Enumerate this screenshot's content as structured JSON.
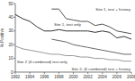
{
  "chart_data": {
    "type": "line",
    "y_label": "% Positive",
    "xlim": [
      1992,
      2008
    ],
    "xticks": [
      1992,
      1994,
      1996,
      1998,
      2000,
      2002,
      2004,
      2006,
      2008
    ],
    "ylim": [
      0,
      50
    ],
    "yticks": [
      0,
      10,
      20,
      30,
      40,
      50
    ],
    "series": [
      {
        "name": "Site 1, test only",
        "color": "#333333",
        "x": [
          1992,
          1993,
          1994,
          1995,
          1996,
          1997,
          1998,
          1999,
          2000,
          2001,
          2002,
          2003,
          2004,
          2005,
          2006,
          2007,
          2008
        ],
        "values": [
          42,
          39,
          37,
          33,
          30,
          30,
          31,
          30,
          30,
          30,
          30,
          29,
          30,
          29,
          25,
          26,
          24
        ]
      },
      {
        "name": "Site 1, test + history",
        "color": "#555555",
        "x": [
          1997,
          1998,
          1999,
          2000,
          2001,
          2002,
          2003,
          2004,
          2005,
          2006,
          2007,
          2008
        ],
        "values": [
          46,
          46,
          39,
          38,
          37,
          37,
          34,
          35,
          33,
          30,
          29,
          28
        ]
      },
      {
        "name": "Site 2 (6 combined) test only",
        "color": "#999999",
        "x": [
          1992,
          1993,
          1994,
          1995,
          1996,
          1997,
          1998,
          1999,
          2000,
          2001,
          2002,
          2003,
          2004,
          2005,
          2006,
          2007,
          2008
        ],
        "values": [
          19,
          17,
          16,
          15,
          14,
          13,
          13,
          12,
          12,
          11,
          11,
          10,
          10,
          9,
          9,
          8,
          8
        ]
      },
      {
        "name": "Site 2, (6 combined) test + history",
        "color": "#666666",
        "x": [
          1997,
          1998,
          1999,
          2000,
          2001,
          2002,
          2003,
          2004,
          2005,
          2006,
          2007,
          2008
        ],
        "values": [
          24,
          23,
          22,
          20,
          19,
          18,
          17,
          16,
          15,
          14,
          13,
          13
        ]
      }
    ]
  }
}
